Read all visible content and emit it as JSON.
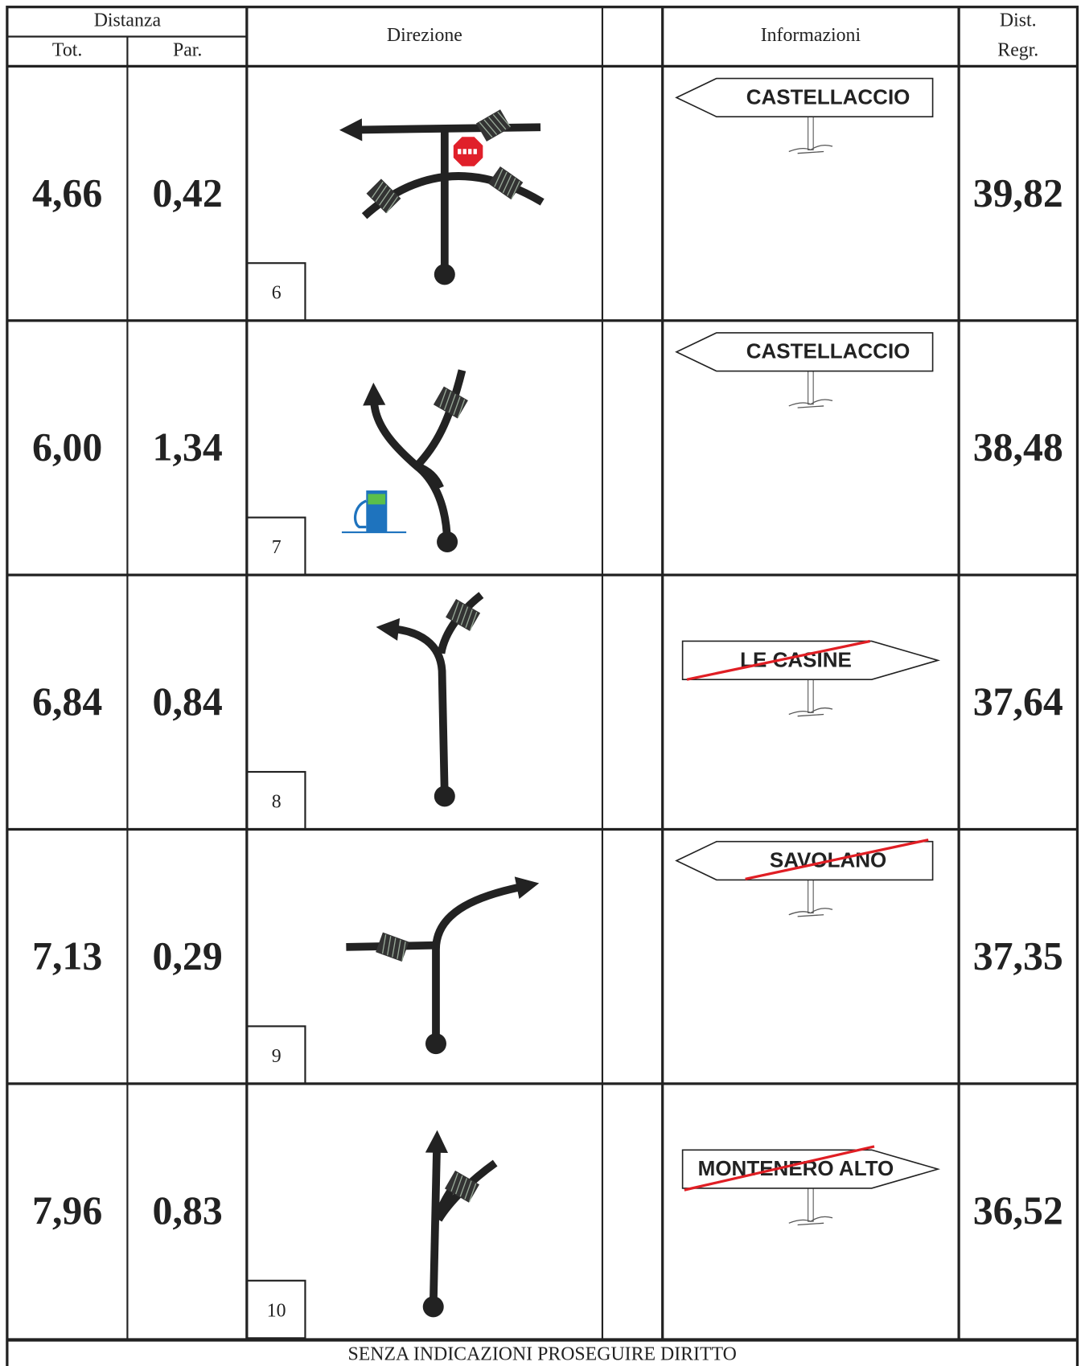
{
  "header": {
    "distanza": "Distanza",
    "tot": "Tot.",
    "par": "Par.",
    "direzione": "Direzione",
    "informazioni": "Informazioni",
    "dist_regr": [
      "Dist.",
      "Regr."
    ]
  },
  "rows": [
    {
      "tot": "4,66",
      "par": "0,42",
      "step": "6",
      "sign": "CASTELLACCIO",
      "regr": "39,82"
    },
    {
      "tot": "6,00",
      "par": "1,34",
      "step": "7",
      "sign": "CASTELLACCIO",
      "regr": "38,48"
    },
    {
      "tot": "6,84",
      "par": "0,84",
      "step": "8",
      "sign": "LE CASINE",
      "regr": "37,64"
    },
    {
      "tot": "7,13",
      "par": "0,29",
      "step": "9",
      "sign": "SAVOLANO",
      "regr": "37,35"
    },
    {
      "tot": "7,96",
      "par": "0,83",
      "step": "10",
      "sign": "MONTENERO ALTO",
      "regr": "36,52"
    }
  ],
  "footer": "SENZA INDICAZIONI PROSEGUIRE DIRITTO"
}
